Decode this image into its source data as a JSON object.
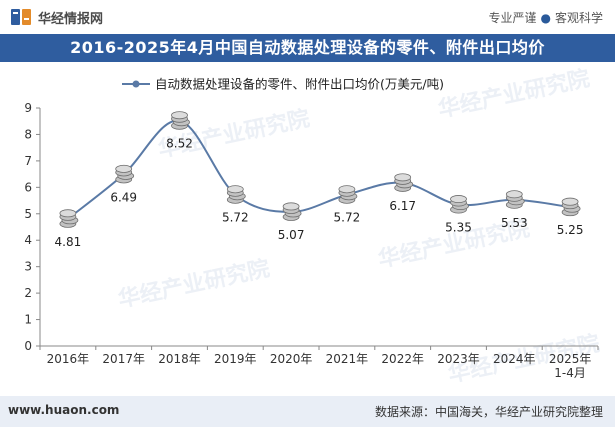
{
  "header": {
    "brand": "华经情报网",
    "slogan_left": "专业严谨",
    "slogan_right": "客观科学"
  },
  "title": "2016-2025年4月中国自动数据处理设备的零件、附件出口均价",
  "chart_data": {
    "type": "line",
    "title": "2016-2025年4月中国自动数据处理设备的零件、附件出口均价",
    "categories": [
      "2016年",
      "2017年",
      "2018年",
      "2019年",
      "2020年",
      "2021年",
      "2022年",
      "2023年",
      "2024年",
      "2025年\n1-4月"
    ],
    "series": [
      {
        "name": "自动数据处理设备的零件、附件出口均价(万美元/吨)",
        "values": [
          4.81,
          6.49,
          8.52,
          5.72,
          5.07,
          5.72,
          6.17,
          5.35,
          5.53,
          5.25
        ],
        "labels": [
          "4.81",
          "6.49",
          "8.52",
          "5.72",
          "5.07",
          "5.72",
          "6.17",
          "5.35",
          "5.53",
          "5.25"
        ]
      }
    ],
    "ylim": [
      0,
      9
    ],
    "yticks": [
      0,
      1,
      2,
      3,
      4,
      5,
      6,
      7,
      8,
      9
    ],
    "xlabel": "",
    "ylabel": "",
    "legend": "top-center",
    "line_color": "#5a7aa6"
  },
  "watermark": "华经产业研究院",
  "footer": {
    "site": "www.huaon.com",
    "source": "数据来源：中国海关，华经产业研究院整理"
  }
}
